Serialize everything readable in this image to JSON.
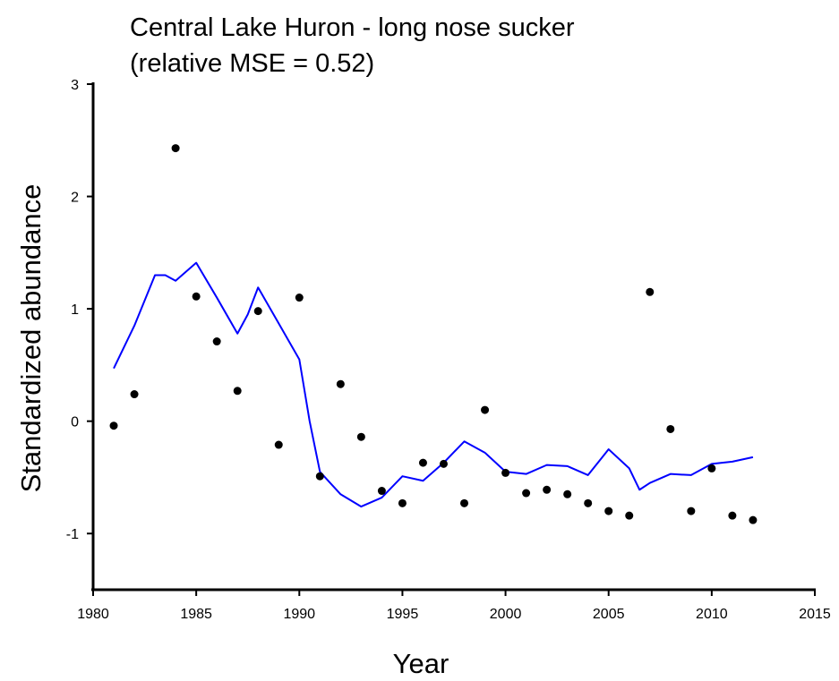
{
  "chart_data": {
    "type": "scatter",
    "title": [
      "Central Lake Huron - long nose sucker",
      "(relative MSE = 0.52)"
    ],
    "x_label": "Year",
    "y_label": "Standardized abundance",
    "xlim": [
      1980,
      2015
    ],
    "ylim": [
      -1.5,
      3
    ],
    "xticks": [
      1980,
      1985,
      1990,
      1995,
      2000,
      2005,
      2010,
      2015
    ],
    "yticks": [
      -1,
      0,
      1,
      2,
      3
    ],
    "points": {
      "color": "#000000",
      "x": [
        1981,
        1982,
        1984,
        1985,
        1986,
        1987,
        1988,
        1989,
        1990,
        1991,
        1992,
        1993,
        1994,
        1995,
        1996,
        1997,
        1998,
        1999,
        2000,
        2001,
        2002,
        2003,
        2004,
        2005,
        2006,
        2007,
        2008,
        2009,
        2010,
        2011,
        2012
      ],
      "y": [
        -0.04,
        0.24,
        2.43,
        1.11,
        0.71,
        0.27,
        0.98,
        -0.21,
        1.1,
        -0.49,
        0.33,
        -0.14,
        -0.62,
        -0.73,
        -0.37,
        -0.38,
        -0.73,
        0.1,
        -0.46,
        -0.64,
        -0.61,
        -0.65,
        -0.73,
        -0.8,
        -0.84,
        1.15,
        -0.07,
        -0.8,
        -0.42,
        -0.84,
        -0.88
      ]
    },
    "fit": {
      "color": "#0000ff",
      "x": [
        1981,
        1982,
        1983,
        1983.5,
        1984,
        1985,
        1986,
        1987,
        1987.5,
        1988,
        1989,
        1990,
        1990.5,
        1991,
        1992,
        1993,
        1994,
        1995,
        1996,
        1997,
        1998,
        1999,
        2000,
        2001,
        2002,
        2003,
        2004,
        2005,
        2006,
        2006.5,
        2007,
        2008,
        2009,
        2010,
        2011,
        2012
      ],
      "y": [
        0.47,
        0.85,
        1.3,
        1.3,
        1.25,
        1.41,
        1.1,
        0.78,
        0.95,
        1.19,
        0.87,
        0.55,
        0.0,
        -0.45,
        -0.65,
        -0.76,
        -0.68,
        -0.49,
        -0.53,
        -0.37,
        -0.18,
        -0.28,
        -0.45,
        -0.47,
        -0.39,
        -0.4,
        -0.48,
        -0.25,
        -0.42,
        -0.61,
        -0.55,
        -0.47,
        -0.48,
        -0.38,
        -0.36,
        -0.32
      ]
    }
  }
}
